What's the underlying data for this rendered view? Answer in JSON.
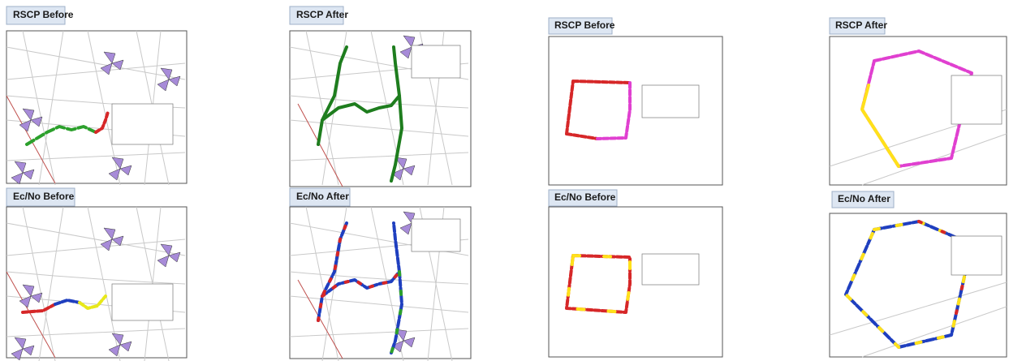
{
  "panels": [
    {
      "title": "RSCP Before"
    },
    {
      "title": "Ec/No Before"
    },
    {
      "title": "RSCP After"
    },
    {
      "title": "Ec/No After"
    },
    {
      "title": "RSCP Before"
    },
    {
      "title": "Ec/No Before"
    },
    {
      "title": "RSCP After"
    },
    {
      "title": "Ec/No After"
    }
  ]
}
